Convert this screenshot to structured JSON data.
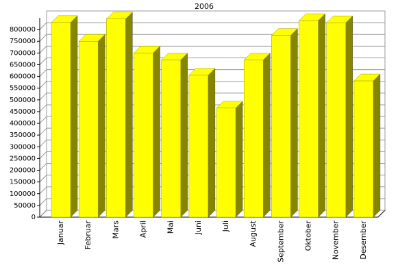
{
  "chart_data": {
    "type": "bar3d",
    "title": "2006",
    "categories": [
      "Januar",
      "Februar",
      "Mars",
      "April",
      "Mai",
      "Juni",
      "Juli",
      "August",
      "September",
      "Oktober",
      "November",
      "Desember"
    ],
    "values": [
      830000,
      750000,
      845000,
      700000,
      670000,
      605000,
      465000,
      670000,
      775000,
      838000,
      829000,
      581000
    ],
    "color": "#ffff00",
    "side_color": "#858500",
    "ylim": [
      0,
      850000
    ],
    "yticks": [
      0,
      50000,
      100000,
      150000,
      200000,
      250000,
      300000,
      350000,
      400000,
      450000,
      500000,
      550000,
      600000,
      650000,
      700000,
      750000,
      800000
    ],
    "grid": true
  }
}
